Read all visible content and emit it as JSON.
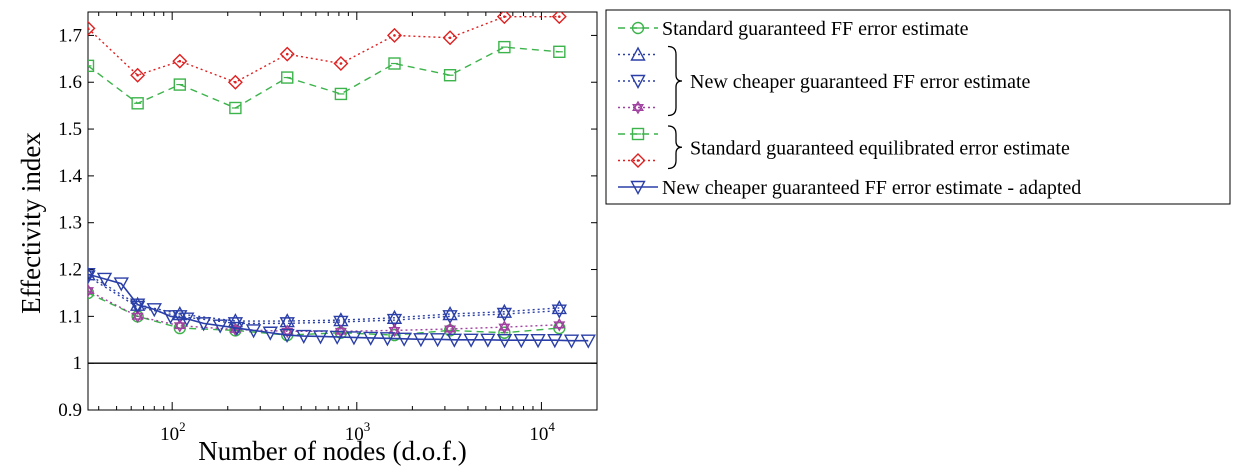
{
  "chart_data": {
    "type": "line",
    "title": "",
    "xlabel": "Number of nodes (d.o.f.)",
    "ylabel": "Effectivity index",
    "xscale": "log",
    "xlim": [
      35,
      20000
    ],
    "ylim": [
      0.9,
      1.75
    ],
    "grid": false,
    "legend_position": "outside-right",
    "x_ticks": [
      {
        "base": "10",
        "exp": "2",
        "value": 100
      },
      {
        "base": "10",
        "exp": "3",
        "value": 1000
      },
      {
        "base": "10",
        "exp": "4",
        "value": 10000
      }
    ],
    "y_ticks": [
      {
        "label": "0.9",
        "value": 0.9
      },
      {
        "label": "1",
        "value": 1.0
      },
      {
        "label": "1.1",
        "value": 1.1
      },
      {
        "label": "1.2",
        "value": 1.2
      },
      {
        "label": "1.3",
        "value": 1.3
      },
      {
        "label": "1.4",
        "value": 1.4
      },
      {
        "label": "1.5",
        "value": 1.5
      },
      {
        "label": "1.6",
        "value": 1.6
      },
      {
        "label": "1.7",
        "value": 1.7
      }
    ],
    "reference_line": {
      "y": 1.0,
      "color": "#000000"
    },
    "series": [
      {
        "color": "#3cb44b",
        "dash": "dash",
        "marker": "circle",
        "x": [
          35,
          65,
          110,
          220,
          420,
          820,
          1600,
          3200,
          6300,
          12500
        ],
        "y": [
          1.15,
          1.1,
          1.075,
          1.07,
          1.06,
          1.065,
          1.06,
          1.07,
          1.065,
          1.075
        ]
      },
      {
        "color": "#2b3fa8",
        "dash": "dot",
        "marker": "triangle-up",
        "x": [
          35,
          65,
          110,
          220,
          420,
          820,
          1600,
          3200,
          6300,
          12500
        ],
        "y": [
          1.19,
          1.125,
          1.105,
          1.09,
          1.09,
          1.092,
          1.097,
          1.105,
          1.11,
          1.118
        ]
      },
      {
        "color": "#2b3fa8",
        "dash": "dot",
        "marker": "triangle-down",
        "x": [
          35,
          65,
          110,
          220,
          420,
          820,
          1600,
          3200,
          6300,
          12500
        ],
        "y": [
          1.185,
          1.12,
          1.1,
          1.085,
          1.085,
          1.088,
          1.092,
          1.1,
          1.105,
          1.112
        ]
      },
      {
        "color": "#a040a0",
        "dash": "dot",
        "marker": "hexagram",
        "x": [
          35,
          65,
          110,
          220,
          420,
          820,
          1600,
          3200,
          6300,
          12500
        ],
        "y": [
          1.155,
          1.1,
          1.08,
          1.072,
          1.068,
          1.068,
          1.07,
          1.073,
          1.077,
          1.082
        ]
      },
      {
        "color": "#3cb44b",
        "dash": "dash",
        "marker": "square",
        "x": [
          35,
          65,
          110,
          220,
          420,
          820,
          1600,
          3200,
          6300,
          12500
        ],
        "y": [
          1.635,
          1.555,
          1.595,
          1.545,
          1.61,
          1.575,
          1.64,
          1.615,
          1.675,
          1.665
        ]
      },
      {
        "color": "#e02020",
        "dash": "dot",
        "marker": "diamond",
        "x": [
          35,
          65,
          110,
          220,
          420,
          820,
          1600,
          3200,
          6300,
          12500
        ],
        "y": [
          1.715,
          1.615,
          1.645,
          1.6,
          1.66,
          1.64,
          1.7,
          1.695,
          1.74,
          1.74
        ]
      },
      {
        "color": "#2b3fa8",
        "dash": "solid",
        "marker": "triangle-down",
        "x": [
          35,
          43,
          53,
          65,
          80,
          98,
          120,
          148,
          182,
          224,
          276,
          340,
          419,
          516,
          636,
          783,
          965,
          1189,
          1465,
          1805,
          2224,
          2740,
          3376,
          4160,
          5126,
          6316,
          7782,
          9589,
          11815,
          14558,
          17938
        ],
        "y": [
          1.19,
          1.18,
          1.17,
          1.125,
          1.115,
          1.1,
          1.095,
          1.085,
          1.08,
          1.075,
          1.07,
          1.065,
          1.06,
          1.058,
          1.057,
          1.056,
          1.055,
          1.054,
          1.053,
          1.052,
          1.051,
          1.051,
          1.05,
          1.05,
          1.05,
          1.049,
          1.049,
          1.049,
          1.049,
          1.048,
          1.048
        ]
      }
    ],
    "legend": [
      {
        "type": "entry",
        "series": 0,
        "label": "Standard guaranteed FF error estimate"
      },
      {
        "type": "group",
        "series": [
          1,
          2,
          3
        ],
        "label": "New cheaper guaranteed FF error estimate"
      },
      {
        "type": "group",
        "series": [
          4,
          5
        ],
        "label": "Standard guaranteed equilibrated error estimate"
      },
      {
        "type": "entry",
        "series": 6,
        "label": "New cheaper guaranteed FF error estimate - adapted"
      }
    ]
  }
}
